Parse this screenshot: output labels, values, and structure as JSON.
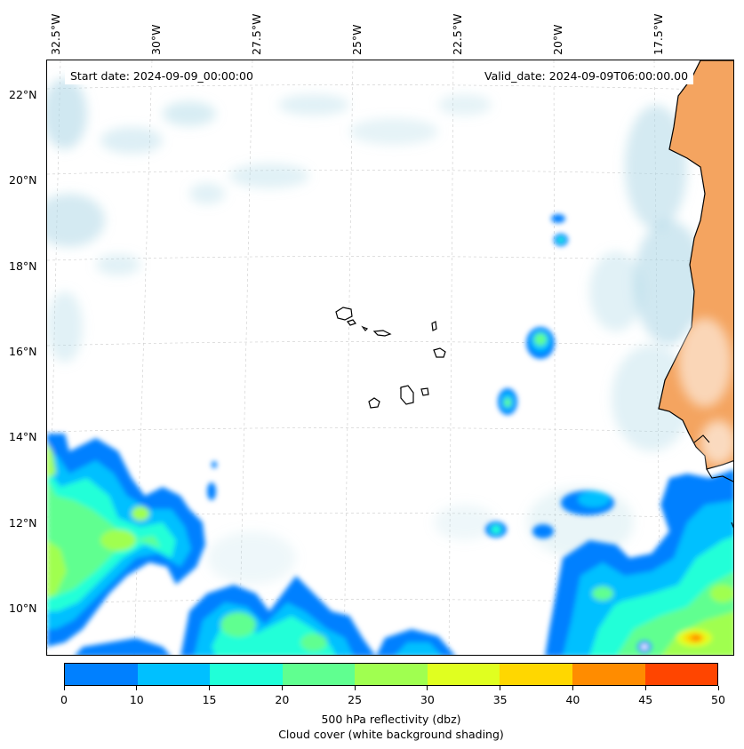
{
  "map": {
    "start_date": "Start date: 2024-09-09_00:00:00",
    "valid_date": "Valid_date: 2024-09-09T06:00:00.00",
    "lon_labels": [
      "32.5°W",
      "30°W",
      "27.5°W",
      "25°W",
      "22.5°W",
      "20°W",
      "17.5°W"
    ],
    "lat_labels": [
      "22°N",
      "20°N",
      "18°N",
      "16°N",
      "14°N",
      "12°N",
      "10°N"
    ],
    "land_color": "#f4a460",
    "coast_color": "#000000",
    "cloud_color": "#a9d6e5"
  },
  "colorbar": {
    "ticks": [
      "0",
      "5",
      "10",
      "15",
      "20",
      "25",
      "30",
      "35",
      "40",
      "45",
      "50"
    ],
    "tick_labels": [
      "0",
      "10",
      "15",
      "20",
      "25",
      "30",
      "35",
      "40",
      "45",
      "50"
    ],
    "colors": [
      "#0080ff",
      "#00c0ff",
      "#20ffd8",
      "#60ff90",
      "#a0ff50",
      "#e0ff20",
      "#ffd700",
      "#ff8c00",
      "#ff4500"
    ],
    "label_line1": "500 hPa reflectivity (dbz)",
    "label_line2": "Cloud cover (white background shading)"
  }
}
